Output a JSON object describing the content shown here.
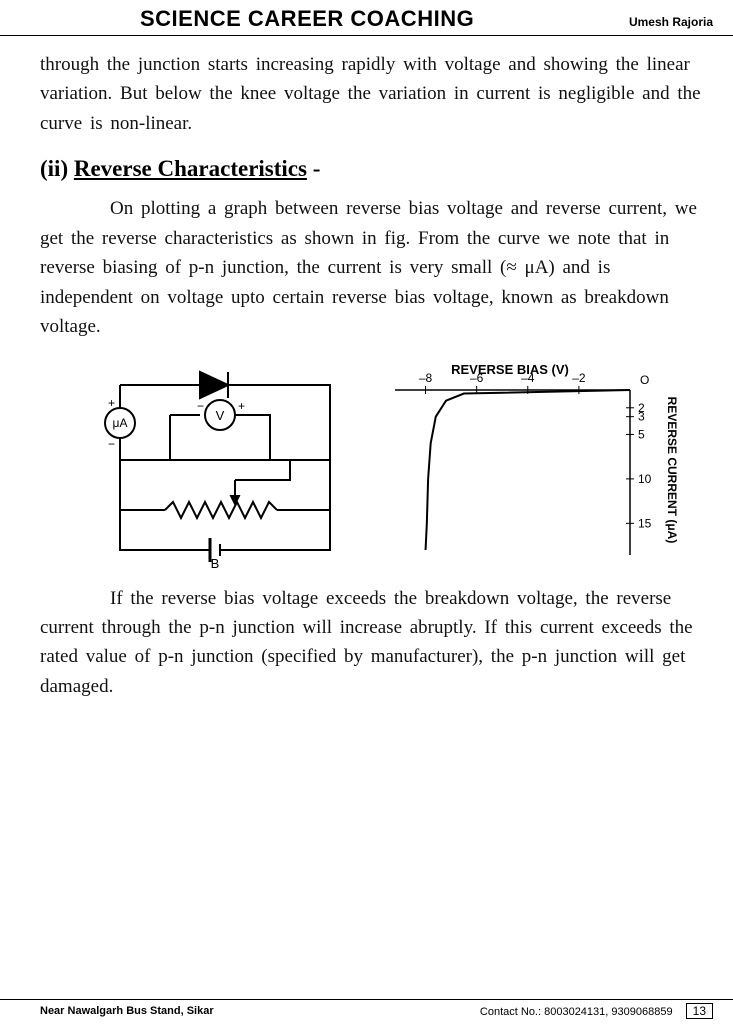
{
  "header": {
    "title": "SCIENCE CAREER COACHING",
    "author": "Umesh Rajoria"
  },
  "para1": "through the junction starts increasing rapidly with voltage and showing the linear variation. But below the knee voltage the variation in current is negligible and the curve is non-linear.",
  "section": {
    "prefix": "(ii)",
    "title": "Reverse Characteristics",
    "dash": "-"
  },
  "para2": "On plotting a graph between reverse bias voltage and reverse current, we get the reverse characteristics as shown in fig. From the curve we note that in reverse biasing of p-n junction, the current is very small (≈ μA) and is independent on voltage upto certain reverse bias voltage, known as breakdown voltage.",
  "para3": "If the reverse bias voltage exceeds the breakdown voltage, the reverse current through the p-n junction will increase abruptly. If this current exceeds the rated value of p-n junction (specified by manufacturer), the p-n junction will get damaged.",
  "circuit": {
    "meter_ua": "μA",
    "voltmeter": "V",
    "battery": "B",
    "plus": "+",
    "minus": "−"
  },
  "chart": {
    "type": "line",
    "title": "REVERSE BIAS (V)",
    "ylabel": "REVERSE CURRENT (μA)",
    "x_ticks": [
      -8,
      -6,
      -4,
      -2
    ],
    "y_ticks": [
      2,
      3,
      5,
      10,
      15
    ],
    "origin_label": "O",
    "xlim": [
      -9,
      0
    ],
    "ylim": [
      0,
      18
    ],
    "curve": [
      {
        "x": 0,
        "y": 0
      },
      {
        "x": -6.5,
        "y": 0.4
      },
      {
        "x": -7.2,
        "y": 1.2
      },
      {
        "x": -7.6,
        "y": 3
      },
      {
        "x": -7.8,
        "y": 6
      },
      {
        "x": -7.9,
        "y": 10
      },
      {
        "x": -7.95,
        "y": 15
      },
      {
        "x": -8.0,
        "y": 18
      }
    ],
    "line_color": "#000000",
    "line_width": 2,
    "axis_color": "#000000",
    "background_color": "#ffffff",
    "title_fontsize": 13,
    "tick_fontsize": 12
  },
  "footer": {
    "left": "Near Nawalgarh Bus Stand, Sikar",
    "right": "Contact No.: 8003024131, 9309068859",
    "page": "13"
  }
}
